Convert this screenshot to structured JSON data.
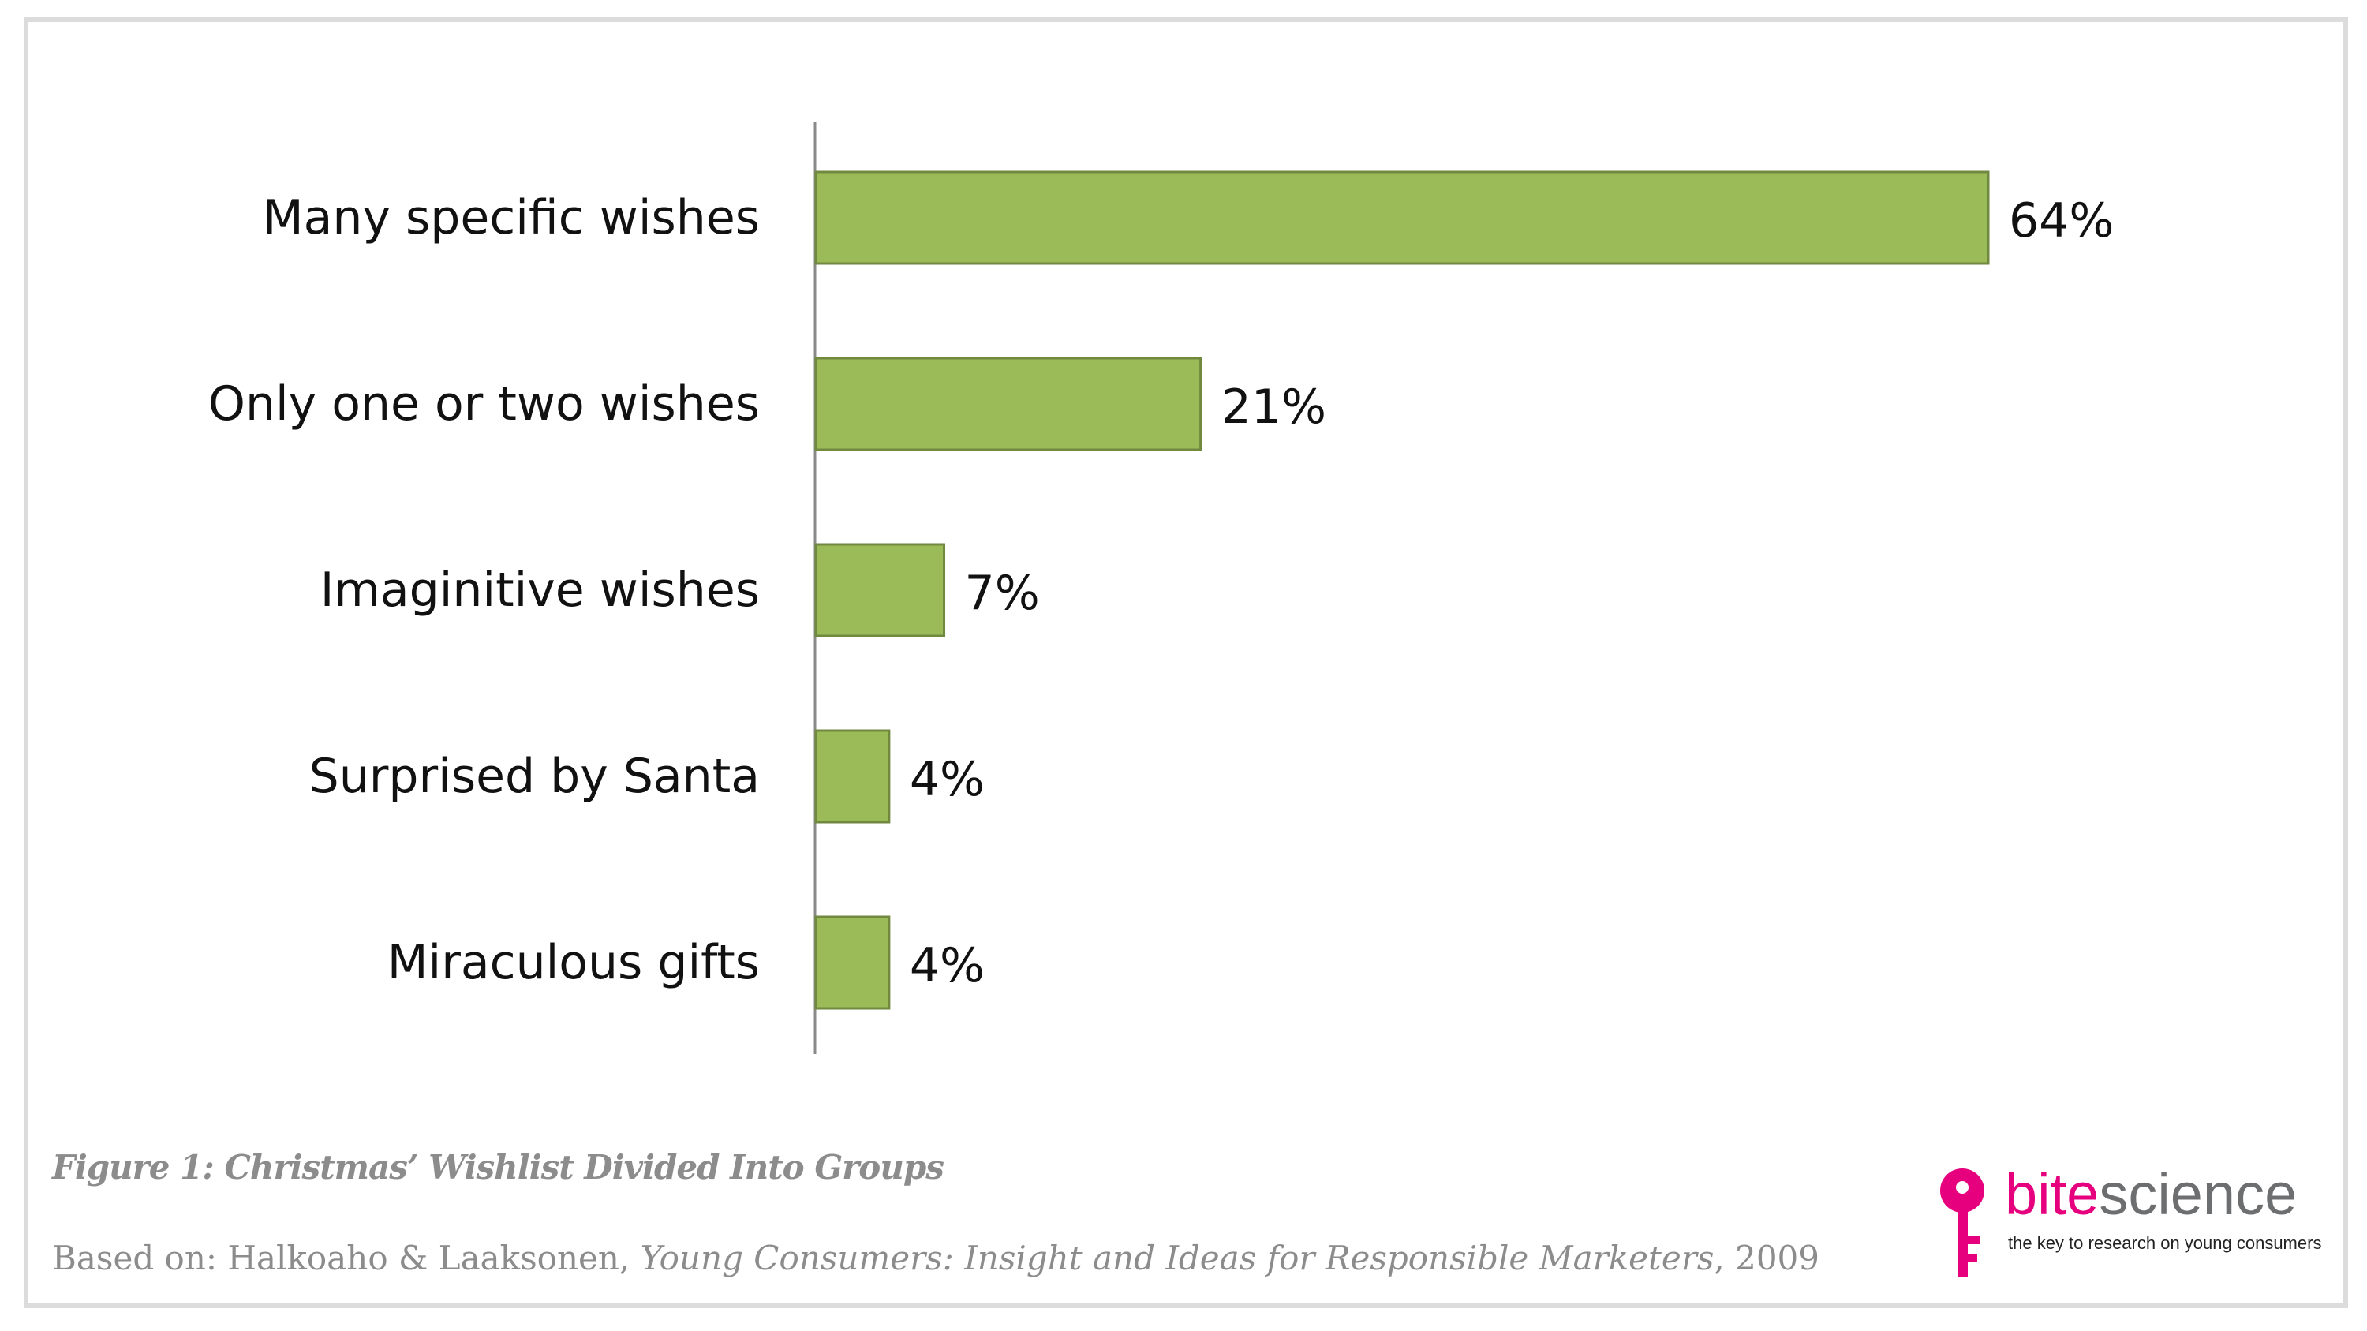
{
  "chart_data": {
    "type": "bar",
    "orientation": "horizontal",
    "categories": [
      "Many specific wishes",
      "Only one or two wishes",
      "Imaginitive wishes",
      "Surprised by Santa",
      "Miraculous gifts"
    ],
    "values": [
      64,
      21,
      7,
      4,
      4
    ],
    "value_labels": [
      "64%",
      "21%",
      "7%",
      "4%",
      "4%"
    ],
    "unit": "%",
    "xlim": [
      0,
      70
    ],
    "grid": false,
    "legend": "none",
    "bar_color": "#9bbb59",
    "bar_border_color": "#71893f",
    "title": "",
    "xlabel": "",
    "ylabel": ""
  },
  "caption": {
    "figure": "Figure 1: Christmas’ Wishlist Divided Into Groups",
    "source_prefix": "Based on: Halkoaho & Laaksonen, ",
    "source_title": "Young Consumers: Insight and Ideas for Responsible Marketers",
    "source_suffix": ", 2009"
  },
  "logo": {
    "word_part1": "bite",
    "word_part2": "science",
    "tagline": "the key to research on young consumers",
    "brand_color": "#e6007e",
    "text_color": "#6d6e70"
  }
}
